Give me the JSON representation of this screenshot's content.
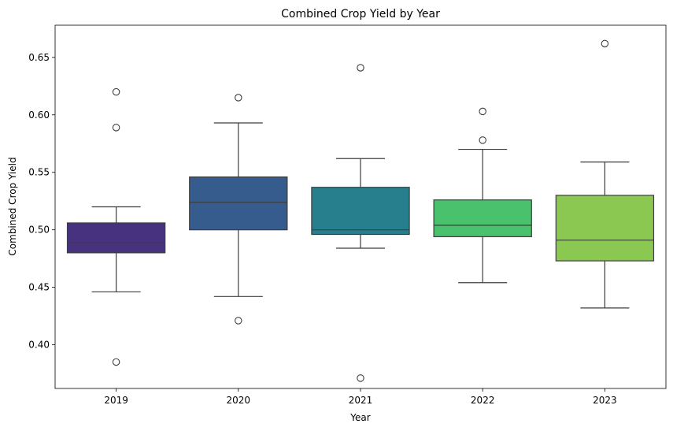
{
  "chart_data": {
    "type": "box",
    "title": "Combined Crop Yield by Year",
    "xlabel": "Year",
    "ylabel": "Combined Crop Yield",
    "categories": [
      "2019",
      "2020",
      "2021",
      "2022",
      "2023"
    ],
    "ylim": [
      0.362,
      0.678
    ],
    "yticks": [
      0.4,
      0.45,
      0.5,
      0.55,
      0.6,
      0.65
    ],
    "ytick_labels": [
      "0.40",
      "0.45",
      "0.50",
      "0.55",
      "0.60",
      "0.65"
    ],
    "grid": false,
    "boxes": [
      {
        "category": "2019",
        "whisker_low": 0.446,
        "q1": 0.48,
        "median": 0.489,
        "q3": 0.506,
        "whisker_high": 0.52,
        "outliers": [
          0.62,
          0.589,
          0.385
        ],
        "color": "#46327e"
      },
      {
        "category": "2020",
        "whisker_low": 0.442,
        "q1": 0.5,
        "median": 0.524,
        "q3": 0.546,
        "whisker_high": 0.593,
        "outliers": [
          0.615,
          0.421
        ],
        "color": "#365c8d"
      },
      {
        "category": "2021",
        "whisker_low": 0.484,
        "q1": 0.496,
        "median": 0.5,
        "q3": 0.537,
        "whisker_high": 0.562,
        "outliers": [
          0.641,
          0.371
        ],
        "color": "#277f8e"
      },
      {
        "category": "2022",
        "whisker_low": 0.454,
        "q1": 0.494,
        "median": 0.504,
        "q3": 0.526,
        "whisker_high": 0.57,
        "outliers": [
          0.603,
          0.578
        ],
        "color": "#4ac16d"
      },
      {
        "category": "2023",
        "whisker_low": 0.432,
        "q1": 0.473,
        "median": 0.491,
        "q3": 0.53,
        "whisker_high": 0.559,
        "outliers": [
          0.662
        ],
        "color": "#8bc852"
      }
    ]
  }
}
